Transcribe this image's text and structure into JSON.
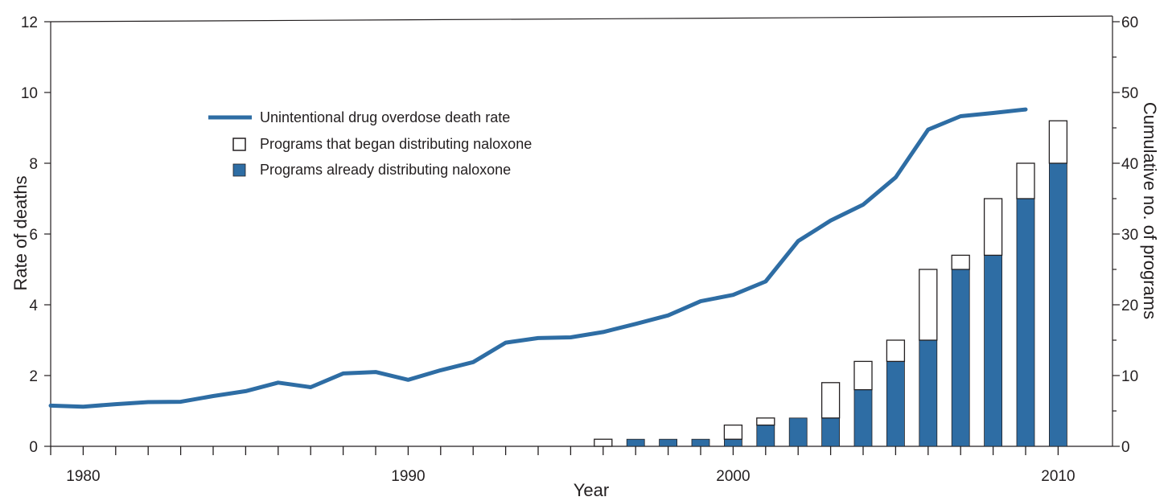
{
  "chart_data": {
    "type": "line+bar",
    "title": "",
    "xlabel": "Year",
    "ylabel_left": "Rate of deaths",
    "ylabel_right": "Cumulative no. of programs",
    "xlim": [
      1979,
      2010
    ],
    "ylim_left": [
      0,
      12
    ],
    "ylim_right": [
      0,
      60
    ],
    "x_tick_labels": [
      "1980",
      "1990",
      "2000",
      "2010"
    ],
    "x_tick_values": [
      1980,
      1990,
      2000,
      2010
    ],
    "y_left_tick_labels": [
      "0",
      "2",
      "4",
      "6",
      "8",
      "10",
      "12"
    ],
    "y_left_tick_values": [
      0,
      2,
      4,
      6,
      8,
      10,
      12
    ],
    "y_right_tick_labels": [
      "0",
      "10",
      "20",
      "30",
      "40",
      "50",
      "60"
    ],
    "y_right_tick_values": [
      0,
      10,
      20,
      30,
      40,
      50,
      60
    ],
    "grid": false,
    "legend_position": "top-left",
    "colors": {
      "line": "#2e6da4",
      "bar_fill": "#2e6da4",
      "bar_outline": "#231f20",
      "axis": "#231f20"
    },
    "line_series": {
      "name": "Unintentional drug overdose death rate",
      "x": [
        1979,
        1980,
        1981,
        1982,
        1983,
        1984,
        1985,
        1986,
        1987,
        1988,
        1989,
        1990,
        1991,
        1992,
        1993,
        1994,
        1995,
        1996,
        1997,
        1998,
        1999,
        2000,
        2001,
        2002,
        2003,
        2004,
        2005,
        2006,
        2007,
        2008,
        2009
      ],
      "y": [
        1.15,
        1.12,
        1.19,
        1.25,
        1.26,
        1.42,
        1.56,
        1.8,
        1.67,
        2.06,
        2.1,
        1.88,
        2.15,
        2.38,
        2.93,
        3.06,
        3.08,
        3.23,
        3.46,
        3.7,
        4.1,
        4.28,
        4.66,
        5.8,
        6.38,
        6.83,
        7.6,
        8.95,
        9.33,
        9.42,
        9.52
      ]
    },
    "bar_series": [
      {
        "name": "Programs already distributing naloxone",
        "x": [
          1996,
          1997,
          1998,
          1999,
          2000,
          2001,
          2002,
          2003,
          2004,
          2005,
          2006,
          2007,
          2008,
          2009,
          2010
        ],
        "values": [
          0,
          1,
          1,
          1,
          1,
          3,
          4,
          4,
          8,
          12,
          15,
          25,
          27,
          35,
          40
        ]
      },
      {
        "name": "Programs that began distributing naloxone",
        "x": [
          1996,
          1997,
          1998,
          1999,
          2000,
          2001,
          2002,
          2003,
          2004,
          2005,
          2006,
          2007,
          2008,
          2009,
          2010
        ],
        "values": [
          1,
          0,
          0,
          0,
          2,
          1,
          0,
          5,
          4,
          3,
          10,
          2,
          8,
          5,
          6
        ]
      }
    ],
    "legend": [
      {
        "label": "Unintentional drug overdose death rate",
        "symbol": "line"
      },
      {
        "label": "Programs that began distributing naloxone",
        "symbol": "open-square"
      },
      {
        "label": "Programs already distributing naloxone",
        "symbol": "filled-square"
      }
    ]
  }
}
